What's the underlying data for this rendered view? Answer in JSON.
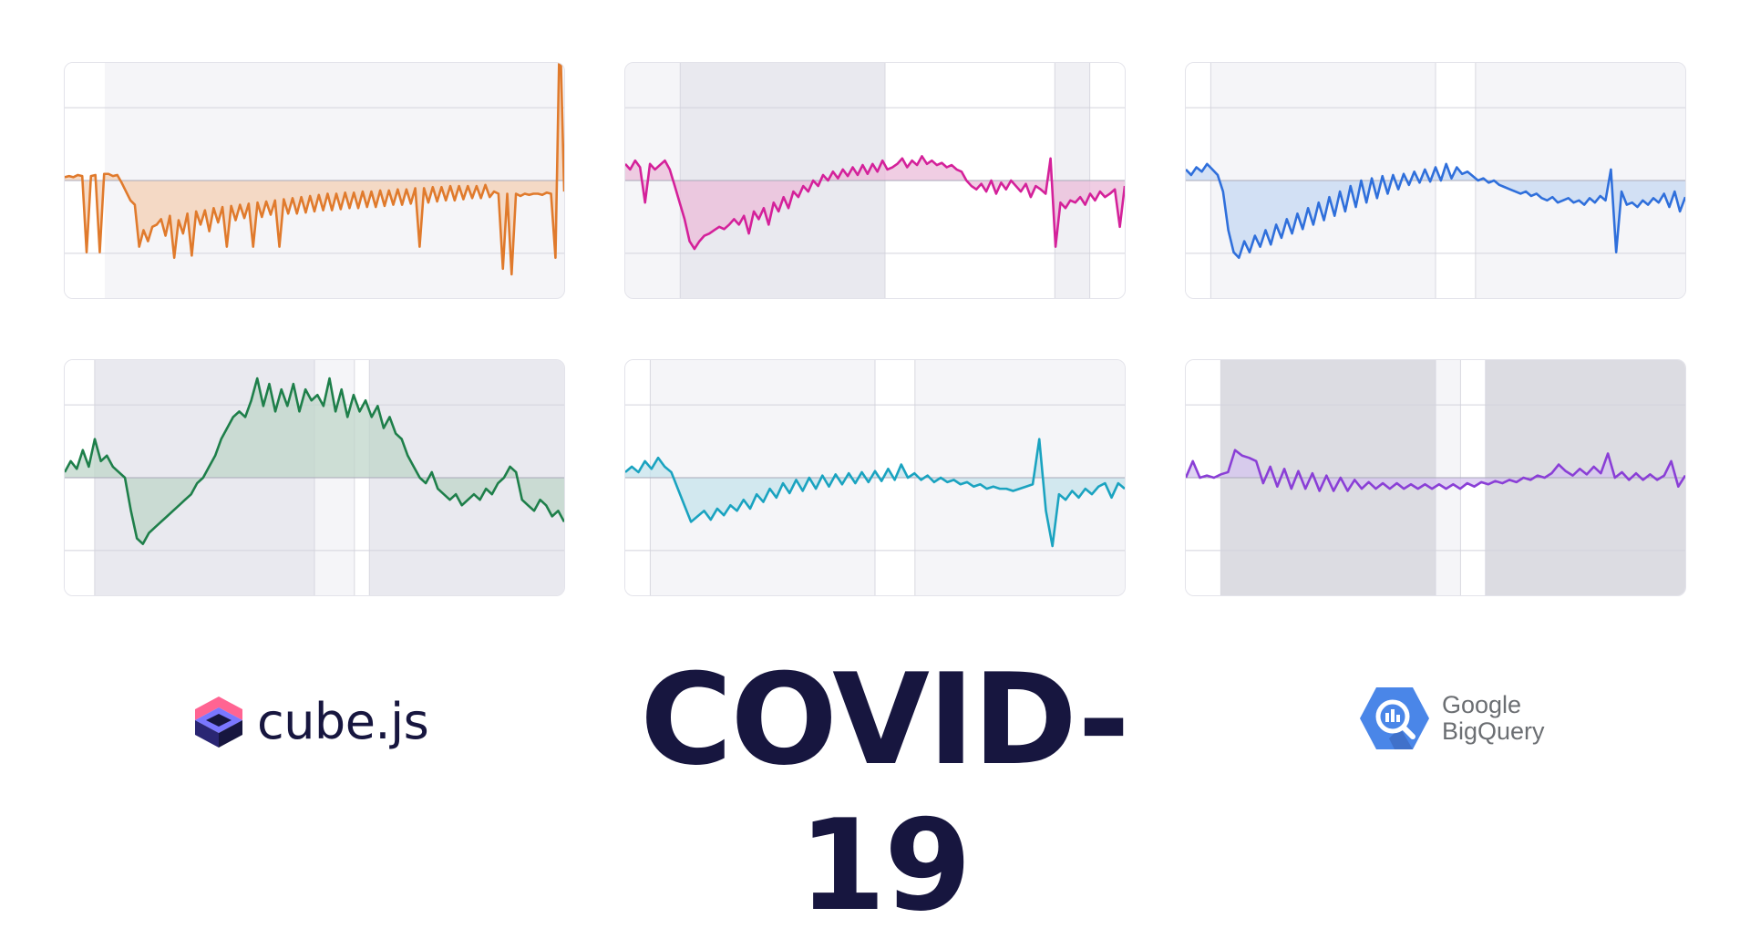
{
  "brand": {
    "left_logo_text": "cube.js",
    "title": "COVID-19",
    "right_logo_line1": "Google",
    "right_logo_line2": "BigQuery",
    "icons": [
      "cube-js-icon",
      "bigquery-icon"
    ]
  },
  "chart_data": [
    {
      "type": "area",
      "color": "#e07a2c",
      "fill": "#f3cfb4",
      "baseline": 0,
      "ylim": [
        -100,
        100
      ],
      "bands": [
        {
          "from": 0.0,
          "to": 0.08,
          "shade": "#ffffff"
        }
      ],
      "values": [
        3,
        4,
        3,
        5,
        4,
        -65,
        4,
        5,
        -65,
        6,
        6,
        4,
        5,
        -2,
        -10,
        -18,
        -22,
        -60,
        -45,
        -55,
        -42,
        -40,
        -35,
        -50,
        -32,
        -70,
        -36,
        -48,
        -30,
        -68,
        -28,
        -40,
        -27,
        -46,
        -25,
        -38,
        -24,
        -60,
        -23,
        -36,
        -22,
        -34,
        -21,
        -60,
        -20,
        -33,
        -19,
        -31,
        -18,
        -60,
        -17,
        -30,
        -16,
        -30,
        -15,
        -29,
        -14,
        -28,
        -13,
        -27,
        -12,
        -27,
        -12,
        -26,
        -11,
        -25,
        -11,
        -25,
        -10,
        -24,
        -10,
        -24,
        -9,
        -23,
        -9,
        -22,
        -8,
        -22,
        -8,
        -21,
        -7,
        -60,
        -7,
        -20,
        -6,
        -19,
        -6,
        -18,
        -5,
        -18,
        -5,
        -17,
        -5,
        -16,
        -5,
        -16,
        -4,
        -15,
        -10,
        -12,
        -80,
        -12,
        -85,
        -12,
        -14,
        -12,
        -13,
        -12,
        -12,
        -13,
        -11,
        -12,
        -70,
        145,
        -10
      ]
    },
    {
      "type": "area",
      "color": "#d4219a",
      "fill": "#ebbcd9",
      "baseline": 0,
      "ylim": [
        -100,
        100
      ],
      "bands": [
        {
          "from": 0.0,
          "to": 0.11,
          "shade": "#f5f5f8"
        },
        {
          "from": 0.11,
          "to": 0.52,
          "shade": "#e9e9ef"
        },
        {
          "from": 0.52,
          "to": 0.86,
          "shade": "#ffffff"
        },
        {
          "from": 0.86,
          "to": 0.93,
          "shade": "#f0f0f4"
        },
        {
          "from": 0.93,
          "to": 1.0,
          "shade": "#ffffff"
        }
      ],
      "values": [
        15,
        10,
        18,
        12,
        -20,
        15,
        10,
        14,
        18,
        10,
        -5,
        -20,
        -35,
        -55,
        -62,
        -55,
        -50,
        -48,
        -45,
        -42,
        -44,
        -40,
        -35,
        -40,
        -32,
        -48,
        -28,
        -35,
        -25,
        -40,
        -20,
        -28,
        -15,
        -25,
        -10,
        -15,
        -5,
        -10,
        0,
        -5,
        5,
        0,
        8,
        2,
        10,
        4,
        12,
        5,
        14,
        6,
        15,
        8,
        18,
        10,
        12,
        15,
        20,
        12,
        18,
        14,
        22,
        15,
        18,
        14,
        16,
        12,
        14,
        10,
        8,
        0,
        -5,
        -8,
        -3,
        -10,
        0,
        -12,
        -2,
        -8,
        0,
        -5,
        -10,
        -3,
        -15,
        -5,
        -8,
        -12,
        20,
        -60,
        -20,
        -25,
        -18,
        -20,
        -15,
        -22,
        -12,
        -18,
        -10,
        -15,
        -12,
        -8,
        -42,
        -5
      ]
    },
    {
      "type": "area",
      "color": "#2f6fdb",
      "fill": "#c6d8f3",
      "baseline": 0,
      "ylim": [
        -100,
        100
      ],
      "bands": [
        {
          "from": 0.0,
          "to": 0.05,
          "shade": "#ffffff"
        },
        {
          "from": 0.05,
          "to": 0.5,
          "shade": "#f5f5f8"
        },
        {
          "from": 0.5,
          "to": 0.58,
          "shade": "#ffffff"
        },
        {
          "from": 0.58,
          "to": 1.0,
          "shade": "#f5f5f8"
        }
      ],
      "values": [
        10,
        5,
        12,
        8,
        15,
        10,
        5,
        -10,
        -45,
        -65,
        -70,
        -55,
        -65,
        -50,
        -60,
        -45,
        -58,
        -40,
        -52,
        -35,
        -48,
        -30,
        -44,
        -25,
        -40,
        -20,
        -36,
        -15,
        -32,
        -10,
        -28,
        -5,
        -24,
        0,
        -20,
        2,
        -16,
        4,
        -12,
        5,
        -8,
        6,
        -4,
        8,
        -2,
        10,
        -1,
        12,
        0,
        15,
        2,
        12,
        6,
        8,
        4,
        0,
        2,
        -2,
        0,
        -4,
        -6,
        -8,
        -10,
        -12,
        -10,
        -14,
        -12,
        -16,
        -18,
        -15,
        -20,
        -18,
        -16,
        -20,
        -18,
        -22,
        -16,
        -20,
        -14,
        -18,
        10,
        -65,
        -10,
        -22,
        -20,
        -24,
        -18,
        -22,
        -16,
        -20,
        -12,
        -24,
        -10,
        -28,
        -15
      ]
    },
    {
      "type": "area",
      "color": "#1e7f4a",
      "fill": "#bfd6c9",
      "baseline": 0,
      "ylim": [
        -100,
        100
      ],
      "bands": [
        {
          "from": 0.0,
          "to": 0.06,
          "shade": "#ffffff"
        },
        {
          "from": 0.06,
          "to": 0.5,
          "shade": "#e9e9ef"
        },
        {
          "from": 0.5,
          "to": 0.58,
          "shade": "#f5f5f8"
        },
        {
          "from": 0.58,
          "to": 0.61,
          "shade": "#ffffff"
        },
        {
          "from": 0.61,
          "to": 1.0,
          "shade": "#e9e9ef"
        }
      ],
      "values": [
        5,
        15,
        8,
        25,
        10,
        35,
        15,
        20,
        10,
        5,
        0,
        -30,
        -55,
        -60,
        -50,
        -45,
        -40,
        -35,
        -30,
        -25,
        -20,
        -15,
        -5,
        0,
        10,
        20,
        35,
        45,
        55,
        60,
        55,
        70,
        90,
        65,
        85,
        60,
        80,
        65,
        85,
        60,
        80,
        70,
        75,
        65,
        90,
        60,
        80,
        55,
        75,
        60,
        70,
        55,
        65,
        45,
        55,
        40,
        35,
        20,
        10,
        0,
        -5,
        5,
        -10,
        -15,
        -20,
        -15,
        -25,
        -20,
        -15,
        -20,
        -10,
        -15,
        -5,
        0,
        10,
        5,
        -20,
        -25,
        -30,
        -20,
        -25,
        -35,
        -30,
        -40
      ]
    },
    {
      "type": "area",
      "color": "#1aa3c0",
      "fill": "#c5e3ec",
      "baseline": 0,
      "ylim": [
        -100,
        100
      ],
      "bands": [
        {
          "from": 0.0,
          "to": 0.05,
          "shade": "#ffffff"
        },
        {
          "from": 0.05,
          "to": 0.5,
          "shade": "#f5f5f8"
        },
        {
          "from": 0.5,
          "to": 0.58,
          "shade": "#ffffff"
        },
        {
          "from": 0.58,
          "to": 1.0,
          "shade": "#f5f5f8"
        }
      ],
      "values": [
        5,
        10,
        5,
        15,
        8,
        18,
        10,
        5,
        -10,
        -25,
        -40,
        -35,
        -30,
        -38,
        -28,
        -34,
        -25,
        -30,
        -20,
        -28,
        -15,
        -22,
        -10,
        -18,
        -5,
        -14,
        -2,
        -12,
        0,
        -10,
        2,
        -8,
        3,
        -6,
        4,
        -5,
        5,
        -4,
        6,
        -3,
        8,
        -2,
        12,
        0,
        4,
        -2,
        2,
        -4,
        0,
        -4,
        -2,
        -6,
        -4,
        -8,
        -6,
        -10,
        -8,
        -10,
        -10,
        -12,
        -10,
        -8,
        -6,
        35,
        -30,
        -62,
        -15,
        -20,
        -12,
        -18,
        -10,
        -15,
        -8,
        -5,
        -18,
        -5,
        -10
      ]
    },
    {
      "type": "area",
      "color": "#8a3fd6",
      "fill": "#d6c6ef",
      "baseline": 0,
      "ylim": [
        -100,
        100
      ],
      "bands": [
        {
          "from": 0.0,
          "to": 0.07,
          "shade": "#ffffff"
        },
        {
          "from": 0.07,
          "to": 0.5,
          "shade": "#dcdce2"
        },
        {
          "from": 0.5,
          "to": 0.55,
          "shade": "#f5f5f8"
        },
        {
          "from": 0.55,
          "to": 0.6,
          "shade": "#ffffff"
        },
        {
          "from": 0.6,
          "to": 1.0,
          "shade": "#dcdce2"
        }
      ],
      "values": [
        0,
        15,
        0,
        2,
        0,
        3,
        5,
        25,
        20,
        18,
        15,
        -5,
        10,
        -8,
        8,
        -10,
        6,
        -10,
        4,
        -12,
        2,
        -12,
        0,
        -12,
        -2,
        -10,
        -4,
        -10,
        -5,
        -10,
        -5,
        -10,
        -6,
        -10,
        -6,
        -10,
        -6,
        -10,
        -6,
        -10,
        -5,
        -8,
        -4,
        -6,
        -3,
        -5,
        -2,
        -4,
        0,
        -2,
        2,
        0,
        4,
        12,
        6,
        2,
        8,
        3,
        10,
        4,
        22,
        0,
        5,
        -2,
        4,
        -2,
        3,
        -2,
        2,
        15,
        -8,
        2
      ]
    }
  ]
}
